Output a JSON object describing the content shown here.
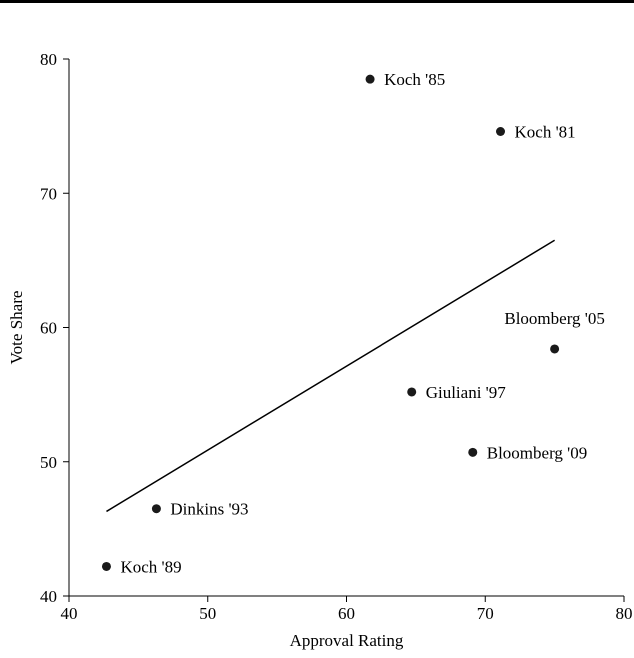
{
  "chart_data": {
    "type": "scatter",
    "xlabel": "Approval Rating",
    "ylabel": "Vote Share",
    "xlim": [
      40,
      80
    ],
    "ylim": [
      40,
      80
    ],
    "xticks": [
      40,
      50,
      60,
      70,
      80
    ],
    "yticks": [
      40,
      50,
      60,
      70,
      80
    ],
    "grid": false,
    "points": [
      {
        "label": "Koch '85",
        "x": 61.7,
        "y": 78.5
      },
      {
        "label": "Koch '81",
        "x": 71.1,
        "y": 74.6
      },
      {
        "label": "Bloomberg '05",
        "x": 75.0,
        "y": 58.4
      },
      {
        "label": "Giuliani '97",
        "x": 64.7,
        "y": 55.2
      },
      {
        "label": "Bloomberg '09",
        "x": 69.1,
        "y": 50.7
      },
      {
        "label": "Dinkins '93",
        "x": 46.3,
        "y": 46.5
      },
      {
        "label": "Koch '89",
        "x": 42.7,
        "y": 42.2
      }
    ],
    "trendline": {
      "x": [
        42.7,
        75.0
      ],
      "y": [
        46.3,
        66.5
      ]
    },
    "colors": {
      "marker": "#1a1a1a",
      "line": "#000000"
    }
  }
}
